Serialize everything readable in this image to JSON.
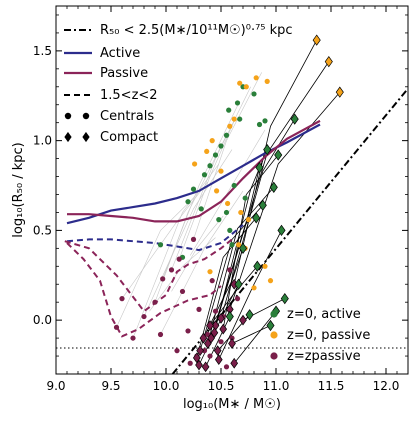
{
  "chart_data": {
    "type": "scatter",
    "xlabel": "log₁₀(M∗ / M☉)",
    "ylabel": "log₁₀(R₅₀ / kpc)",
    "xlim": [
      9.0,
      12.2
    ],
    "ylim": [
      -0.3,
      1.75
    ],
    "xticks": [
      9.0,
      9.5,
      10.0,
      10.5,
      11.0,
      11.5,
      12.0
    ],
    "xtick_labels": [
      "9.0",
      "9.5",
      "10.0",
      "10.5",
      "11.0",
      "11.5",
      "12.0"
    ],
    "yticks": [
      0.0,
      0.5,
      1.0,
      1.5
    ],
    "ytick_labels": [
      "0.0",
      "0.5",
      "1.0",
      "1.5"
    ],
    "colors": {
      "active": "#2c2c8c",
      "passive": "#8b2459",
      "green": "#2a7f3a",
      "orange": "#f5a31a",
      "purple": "#7a1f4a"
    },
    "legend_upper": [
      {
        "label": "R₅₀ < 2.5(M∗/10¹¹M☉)⁰·⁷⁵ kpc",
        "style": "dashdot"
      },
      {
        "label": "Active",
        "style": "active"
      },
      {
        "label": "Passive",
        "style": "passive"
      },
      {
        "label": "1.5<z<2",
        "style": "dashed"
      },
      {
        "label": "Centrals",
        "style": "circles"
      },
      {
        "label": "Compact",
        "style": "diamonds"
      }
    ],
    "legend_lower": [
      {
        "label": "z=0, active",
        "color": "green"
      },
      {
        "label": "z=0, passive",
        "color": "orange"
      },
      {
        "label": "z=zpassive",
        "color": "purple"
      }
    ],
    "compact_line": {
      "x": [
        10.06,
        12.2
      ],
      "y": [
        -0.3,
        1.29
      ]
    },
    "hline_y": -0.155,
    "series": [
      {
        "style": "active",
        "x": [
          9.1,
          9.3,
          9.5,
          9.7,
          9.9,
          10.1,
          10.3,
          10.5,
          10.7,
          10.9,
          11.1,
          11.4
        ],
        "y": [
          0.54,
          0.57,
          0.61,
          0.63,
          0.65,
          0.68,
          0.72,
          0.79,
          0.86,
          0.93,
          0.99,
          1.09
        ]
      },
      {
        "style": "passive",
        "x": [
          9.1,
          9.3,
          9.5,
          9.7,
          9.9,
          10.1,
          10.3,
          10.5,
          10.7,
          10.9,
          11.1,
          11.4
        ],
        "y": [
          0.59,
          0.59,
          0.58,
          0.57,
          0.55,
          0.55,
          0.58,
          0.66,
          0.79,
          0.91,
          1.01,
          1.11
        ]
      },
      {
        "style": "active_dash",
        "x": [
          9.1,
          9.3,
          9.5,
          9.7,
          9.9,
          10.1,
          10.3,
          10.5,
          10.7
        ],
        "y": [
          0.44,
          0.45,
          0.45,
          0.44,
          0.43,
          0.41,
          0.39,
          0.43,
          0.53
        ]
      },
      {
        "style": "passive_dash",
        "x": [
          9.08,
          9.3,
          9.55,
          9.8,
          10.0,
          10.1,
          10.2,
          10.35,
          10.5,
          10.6
        ],
        "y": [
          0.44,
          0.4,
          0.25,
          0.05,
          0.14,
          0.27,
          0.31,
          0.34,
          0.4,
          0.45
        ]
      },
      {
        "style": "passive_dash",
        "x": [
          9.1,
          9.25,
          9.4,
          9.5,
          9.6,
          9.75,
          9.95,
          10.2,
          10.4,
          10.5
        ],
        "y": [
          0.43,
          0.34,
          0.22,
          0.02,
          -0.09,
          -0.05,
          0.04,
          0.11,
          0.14,
          0.19
        ]
      }
    ],
    "tracks": [
      {
        "compact": true,
        "x": [
          11.37,
          10.95,
          10.62
        ],
        "y": [
          1.56,
          1.08,
          0.2
        ]
      },
      {
        "compact": true,
        "x": [
          11.48,
          10.92,
          10.45
        ],
        "y": [
          1.44,
          0.93,
          -0.03
        ]
      },
      {
        "compact": true,
        "x": [
          11.58,
          11.02,
          10.58
        ],
        "y": [
          1.27,
          0.87,
          0.06
        ]
      },
      {
        "compact": true,
        "x": [
          11.17,
          10.88,
          10.5
        ],
        "y": [
          1.12,
          0.83,
          0.01
        ]
      },
      {
        "compact": true,
        "x": [
          10.92,
          10.77,
          10.44
        ],
        "y": [
          0.95,
          0.73,
          -0.07
        ]
      },
      {
        "compact": true,
        "x": [
          11.02,
          10.73,
          10.52
        ],
        "y": [
          0.92,
          0.7,
          -0.05
        ]
      },
      {
        "compact": true,
        "x": [
          10.85,
          10.74,
          10.41
        ],
        "y": [
          0.85,
          0.57,
          -0.1
        ]
      },
      {
        "compact": true,
        "x": [
          10.98,
          10.65,
          10.38
        ],
        "y": [
          0.74,
          0.51,
          -0.13
        ]
      },
      {
        "compact": true,
        "x": [
          10.88,
          10.6,
          10.31
        ],
        "y": [
          0.64,
          0.45,
          -0.17
        ]
      },
      {
        "compact": true,
        "x": [
          10.82,
          10.52,
          10.28
        ],
        "y": [
          0.57,
          0.35,
          -0.21
        ]
      },
      {
        "compact": true,
        "x": [
          10.83,
          10.62,
          10.4
        ],
        "y": [
          0.3,
          0.15,
          -0.03
        ]
      },
      {
        "compact": true,
        "x": [
          10.7,
          10.6,
          10.34
        ],
        "y": [
          0.4,
          0.22,
          -0.1
        ]
      },
      {
        "compact": true,
        "x": [
          11.05,
          10.8,
          10.48
        ],
        "y": [
          0.5,
          0.2,
          -0.22
        ]
      },
      {
        "compact": true,
        "x": [
          10.66,
          10.55,
          10.3
        ],
        "y": [
          0.2,
          0.07,
          -0.25
        ]
      },
      {
        "compact": true,
        "x": [
          11.08,
          10.7
        ],
        "y": [
          0.12,
          0.0
        ]
      },
      {
        "compact": true,
        "x": [
          10.95,
          10.6
        ],
        "y": [
          -0.03,
          -0.13
        ]
      },
      {
        "compact": true,
        "x": [
          10.76,
          10.47
        ],
        "y": [
          0.03,
          -0.17
        ]
      },
      {
        "compact": true,
        "x": [
          10.58,
          10.36
        ],
        "y": [
          0.02,
          -0.26
        ]
      },
      {
        "compact": true,
        "x": [
          11.0,
          10.62
        ],
        "y": [
          0.05,
          -0.24
        ]
      },
      {
        "compact": false,
        "x": [
          10.67,
          10.3,
          9.97
        ],
        "y": [
          1.22,
          0.75,
          0.23
        ]
      },
      {
        "compact": false,
        "x": [
          10.62,
          10.4,
          10.12
        ],
        "y": [
          1.11,
          0.8,
          0.34
        ]
      },
      {
        "compact": false,
        "x": [
          10.55,
          10.2,
          9.9
        ],
        "y": [
          1.03,
          0.6,
          0.1
        ]
      },
      {
        "compact": false,
        "x": [
          10.77,
          10.45,
          10.05
        ],
        "y": [
          1.3,
          0.9,
          0.28
        ]
      },
      {
        "compact": false,
        "x": [
          10.6,
          10.25,
          9.8
        ],
        "y": [
          0.95,
          0.62,
          0.02
        ]
      },
      {
        "compact": false,
        "x": [
          10.48,
          10.15,
          9.7
        ],
        "y": [
          0.87,
          0.6,
          -0.1
        ]
      },
      {
        "compact": false,
        "x": [
          10.38,
          10.1,
          9.6
        ],
        "y": [
          0.77,
          0.55,
          0.12
        ]
      },
      {
        "compact": false,
        "x": [
          10.25,
          9.95,
          9.55
        ],
        "y": [
          0.68,
          0.5,
          -0.04
        ]
      },
      {
        "compact": false,
        "x": [
          10.7,
          10.35,
          9.95
        ],
        "y": [
          0.72,
          0.4,
          -0.08
        ]
      },
      {
        "compact": false,
        "x": [
          10.87,
          10.55,
          10.25
        ],
        "y": [
          1.38,
          1.0,
          0.45
        ]
      },
      {
        "compact": false,
        "x": [
          10.52,
          10.28,
          10.05
        ],
        "y": [
          0.58,
          0.4,
          0.16
        ]
      },
      {
        "compact": false,
        "x": [
          10.9,
          10.55,
          10.22
        ],
        "y": [
          1.06,
          0.7,
          0.36
        ]
      },
      {
        "compact": false,
        "x": [
          10.45,
          10.15,
          9.85
        ],
        "y": [
          0.46,
          0.3,
          0.05
        ]
      }
    ],
    "points_green": {
      "x": [
        10.57,
        10.65,
        10.67,
        10.7,
        10.8,
        10.85,
        10.9,
        10.55,
        10.5,
        10.45,
        10.4,
        10.35,
        10.25,
        10.2,
        10.32,
        10.48,
        10.58,
        10.72,
        10.6,
        9.95,
        10.15,
        10.55,
        10.62
      ],
      "y": [
        1.17,
        1.21,
        1.12,
        1.3,
        1.26,
        1.09,
        1.11,
        1.03,
        0.97,
        0.92,
        0.86,
        0.81,
        0.73,
        0.66,
        0.62,
        0.56,
        0.5,
        0.68,
        0.42,
        0.42,
        0.35,
        0.6,
        0.75
      ]
    },
    "points_orange": {
      "x": [
        10.67,
        10.73,
        10.82,
        10.92,
        10.62,
        10.58,
        10.42,
        10.37,
        10.26,
        10.46,
        10.56,
        10.68,
        10.75,
        10.5,
        10.66,
        10.72,
        10.9,
        10.4,
        10.8,
        10.95
      ],
      "y": [
        1.32,
        1.3,
        1.35,
        1.33,
        1.12,
        1.08,
        1.0,
        0.94,
        0.87,
        0.72,
        0.65,
        0.6,
        0.56,
        0.83,
        0.42,
        0.4,
        0.3,
        0.27,
        0.18,
        0.22
      ]
    },
    "points_purple": {
      "x": [
        9.97,
        10.12,
        9.9,
        10.05,
        9.8,
        9.7,
        9.6,
        9.55,
        9.95,
        10.25,
        10.3,
        10.4,
        10.35,
        10.5,
        10.6,
        10.55,
        10.45,
        10.2,
        10.1,
        10.62,
        10.65,
        10.52,
        10.15,
        10.42,
        10.58,
        10.38,
        10.28,
        10.22
      ],
      "y": [
        0.23,
        0.34,
        0.1,
        0.28,
        0.02,
        -0.1,
        0.12,
        -0.04,
        -0.08,
        0.45,
        0.06,
        -0.2,
        -0.17,
        -0.12,
        -0.1,
        -0.26,
        0.05,
        -0.06,
        -0.17,
        0.2,
        0.12,
        0.02,
        0.16,
        0.22,
        0.28,
        -0.08,
        -0.2,
        -0.24
      ]
    }
  }
}
